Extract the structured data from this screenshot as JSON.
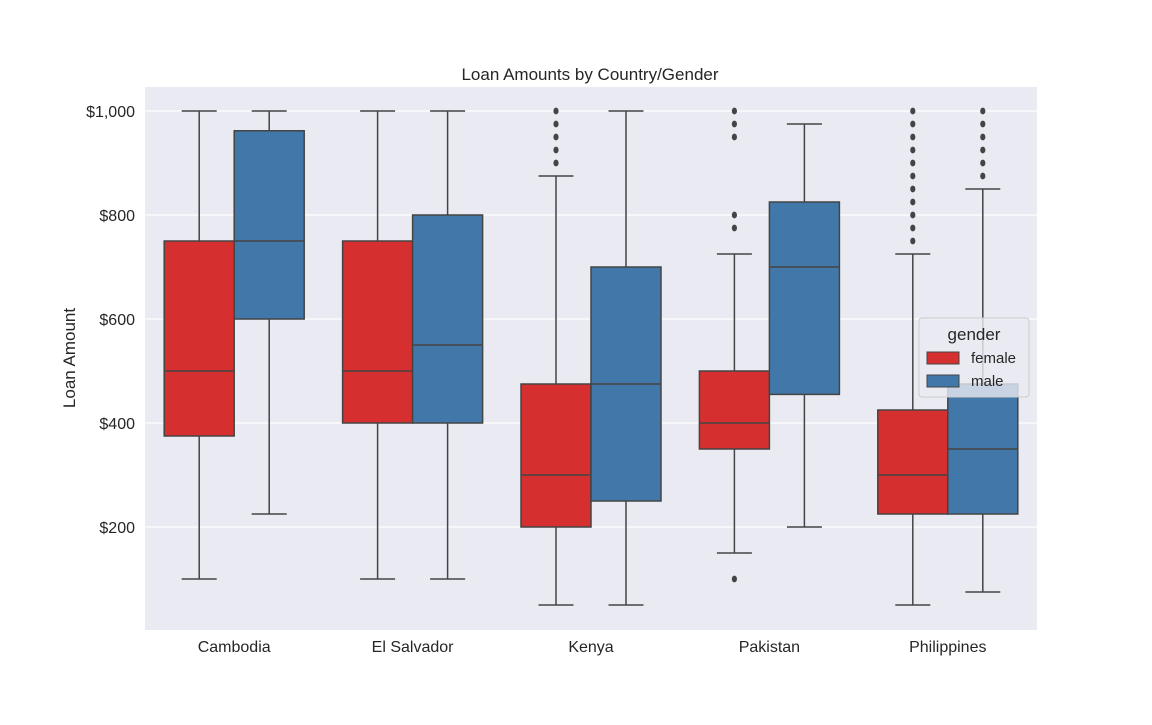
{
  "chart_data": {
    "type": "box",
    "title": "Loan Amounts by Country/Gender",
    "xlabel": "",
    "ylabel": "Loan Amount",
    "ylim": [
      0,
      1050
    ],
    "yticks": [
      200,
      400,
      600,
      800,
      1000
    ],
    "ytick_labels": [
      "$200",
      "$400",
      "$600",
      "$800",
      "$1,000"
    ],
    "grid": true,
    "categories": [
      "Cambodia",
      "El Salvador",
      "Kenya",
      "Pakistan",
      "Philippines"
    ],
    "legend": {
      "title": "gender",
      "position": "center-right"
    },
    "series": [
      {
        "name": "female",
        "color": "#d62f2f",
        "boxes": [
          {
            "whislo": 100,
            "q1": 375,
            "med": 500,
            "q3": 750,
            "whishi": 1000,
            "fliers": []
          },
          {
            "whislo": 100,
            "q1": 400,
            "med": 500,
            "q3": 750,
            "whishi": 1000,
            "fliers": []
          },
          {
            "whislo": 50,
            "q1": 200,
            "med": 300,
            "q3": 475,
            "whishi": 875,
            "fliers": [
              900,
              925,
              950,
              975,
              1000
            ]
          },
          {
            "whislo": 150,
            "q1": 350,
            "med": 400,
            "q3": 500,
            "whishi": 725,
            "fliers": [
              100,
              775,
              800,
              950,
              975,
              1000
            ]
          },
          {
            "whislo": 50,
            "q1": 225,
            "med": 300,
            "q3": 425,
            "whishi": 725,
            "fliers": [
              750,
              775,
              800,
              825,
              850,
              875,
              900,
              925,
              950,
              975,
              1000
            ]
          }
        ]
      },
      {
        "name": "male",
        "color": "#4278a9",
        "boxes": [
          {
            "whislo": 225,
            "q1": 600,
            "med": 750,
            "q3": 962,
            "whishi": 1000,
            "fliers": []
          },
          {
            "whislo": 100,
            "q1": 400,
            "med": 550,
            "q3": 800,
            "whishi": 1000,
            "fliers": []
          },
          {
            "whislo": 50,
            "q1": 250,
            "med": 475,
            "q3": 700,
            "whishi": 1000,
            "fliers": []
          },
          {
            "whislo": 200,
            "q1": 455,
            "med": 700,
            "q3": 825,
            "whishi": 975,
            "fliers": []
          },
          {
            "whislo": 75,
            "q1": 225,
            "med": 350,
            "q3": 475,
            "whishi": 850,
            "fliers": [
              875,
              900,
              925,
              950,
              975,
              1000
            ]
          }
        ]
      }
    ]
  }
}
